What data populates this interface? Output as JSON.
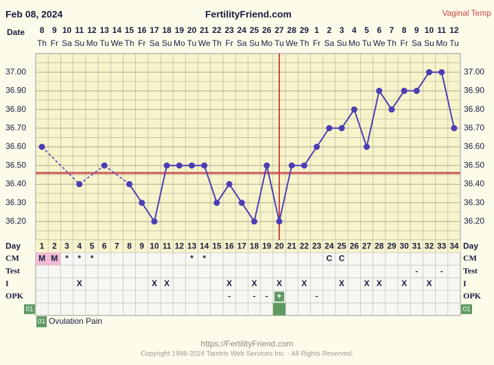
{
  "header": {
    "date": "Feb 08, 2024",
    "site": "FertilityFriend.com",
    "temp_type": "Vaginal Temp"
  },
  "chart_data": {
    "type": "line",
    "x_label": "Date",
    "categories": [
      "8",
      "9",
      "10",
      "11",
      "12",
      "13",
      "14",
      "15",
      "16",
      "17",
      "18",
      "19",
      "20",
      "21",
      "22",
      "23",
      "24",
      "25",
      "26",
      "27",
      "28",
      "29",
      "1",
      "2",
      "3",
      "4",
      "5",
      "6",
      "7",
      "8",
      "9",
      "10",
      "11",
      "12"
    ],
    "weekdays": [
      "Th",
      "Fr",
      "Sa",
      "Su",
      "Mo",
      "Tu",
      "We",
      "Th",
      "Fr",
      "Sa",
      "Su",
      "Mo",
      "Tu",
      "We",
      "Th",
      "Fr",
      "Sa",
      "Su",
      "Mo",
      "Tu",
      "We",
      "Th",
      "Fr",
      "Sa",
      "Su",
      "Mo",
      "Tu",
      "We",
      "Th",
      "Fr",
      "Sa",
      "Su",
      "Mo",
      "Tu"
    ],
    "values": [
      36.6,
      null,
      null,
      36.4,
      null,
      36.5,
      null,
      36.4,
      36.3,
      36.2,
      36.5,
      36.5,
      36.5,
      36.5,
      36.3,
      36.4,
      36.3,
      36.2,
      36.5,
      36.2,
      36.5,
      36.5,
      36.6,
      36.7,
      36.7,
      36.8,
      36.6,
      36.9,
      36.8,
      36.9,
      36.9,
      37.0,
      37.0,
      36.7
    ],
    "color": "#4b3db5",
    "ylim": [
      36.1,
      37.1
    ],
    "yticks": [
      {
        "value": 36.2,
        "label": "36.20"
      },
      {
        "value": 36.3,
        "label": "36.30"
      },
      {
        "value": 36.4,
        "label": "36.40"
      },
      {
        "value": 36.5,
        "label": "36.50"
      },
      {
        "value": 36.6,
        "label": "36.60"
      },
      {
        "value": 36.7,
        "label": "36.70"
      },
      {
        "value": 36.8,
        "label": "36.80"
      },
      {
        "value": 36.9,
        "label": "36.90"
      },
      {
        "value": 37.0,
        "label": "37.00"
      }
    ],
    "grid": true,
    "coverline": 36.46,
    "ovulation_day": 20,
    "day_label": "Day",
    "days": [
      1,
      2,
      3,
      4,
      5,
      6,
      7,
      8,
      9,
      10,
      11,
      12,
      13,
      14,
      15,
      16,
      17,
      18,
      19,
      20,
      21,
      22,
      23,
      24,
      25,
      26,
      27,
      28,
      29,
      30,
      31,
      32,
      33,
      34
    ],
    "rows": [
      {
        "label": "CM",
        "values": [
          "M",
          "M",
          "*",
          "*",
          "*",
          null,
          null,
          null,
          null,
          null,
          null,
          null,
          "*",
          "*",
          null,
          null,
          null,
          null,
          null,
          null,
          null,
          null,
          null,
          "C",
          "C",
          null,
          null,
          null,
          null,
          null,
          null,
          null,
          null,
          null
        ]
      },
      {
        "label": "Test",
        "values": [
          null,
          null,
          null,
          null,
          null,
          null,
          null,
          null,
          null,
          null,
          null,
          null,
          null,
          null,
          null,
          null,
          null,
          null,
          null,
          null,
          null,
          null,
          null,
          null,
          null,
          null,
          null,
          null,
          null,
          null,
          "-",
          null,
          "-",
          null
        ]
      },
      {
        "label": "I",
        "values": [
          null,
          null,
          null,
          "X",
          null,
          null,
          null,
          null,
          null,
          "X",
          "X",
          null,
          null,
          null,
          null,
          "X",
          null,
          "X",
          null,
          "X",
          null,
          "X",
          null,
          null,
          "X",
          null,
          "X",
          "X",
          null,
          "X",
          null,
          "X",
          null,
          null
        ]
      },
      {
        "label": "OPK",
        "values": [
          null,
          null,
          null,
          null,
          null,
          null,
          null,
          null,
          null,
          null,
          null,
          null,
          null,
          null,
          null,
          "-",
          null,
          "-",
          "-",
          "+",
          null,
          null,
          "-",
          null,
          null,
          null,
          null,
          null,
          null,
          null,
          null,
          null,
          null,
          null
        ]
      }
    ],
    "custom": {
      "code": "01",
      "days": [
        20
      ],
      "legend": "Ovulation Pain"
    }
  },
  "footer": {
    "url": "https://FertilityFriend.com",
    "copyright": "Copyright 1998-2024 Tamtris Web Services Inc. - All Rights Reserved."
  }
}
